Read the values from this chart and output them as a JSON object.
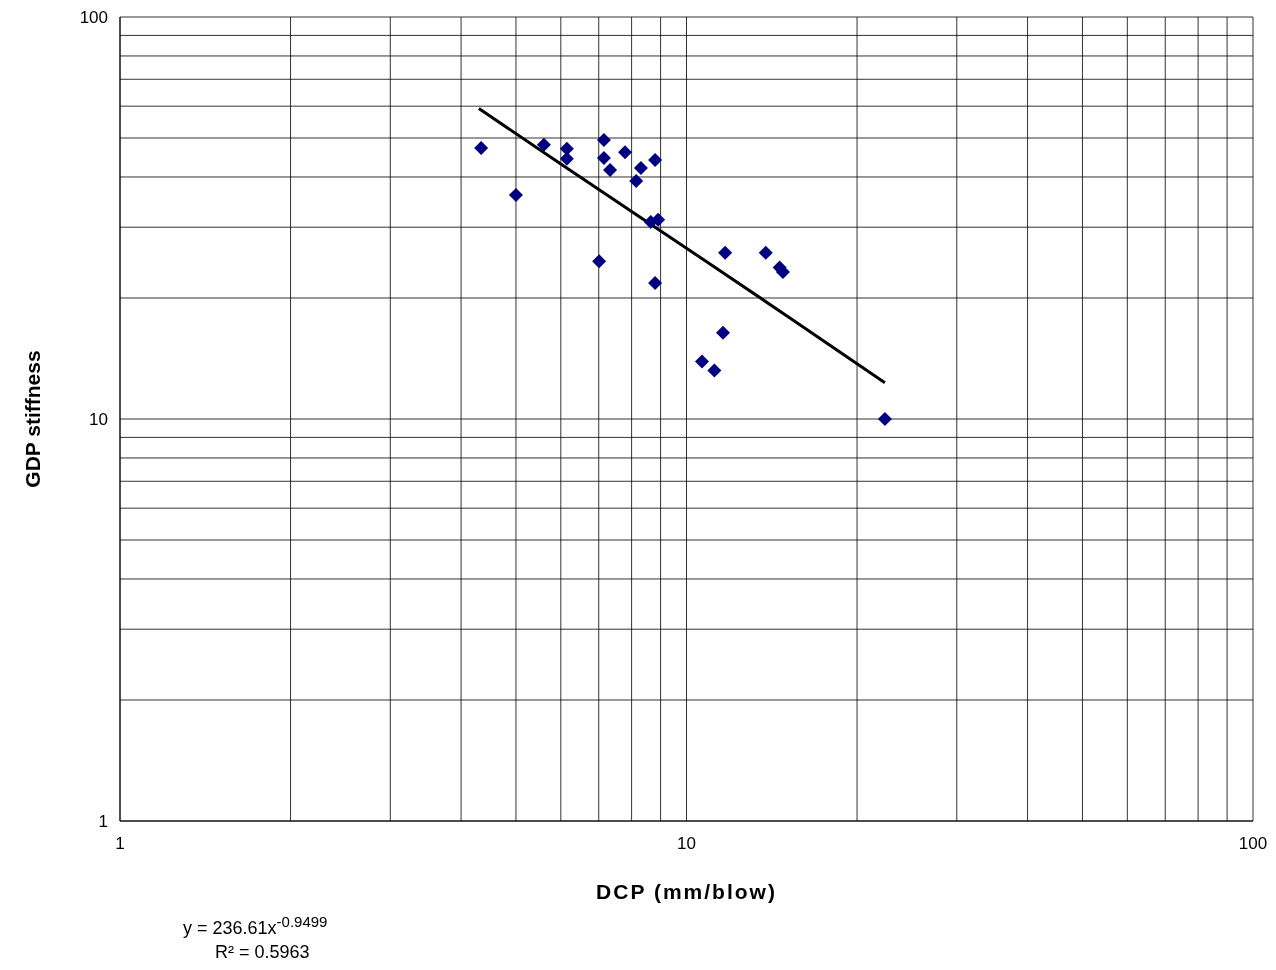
{
  "chart_data": {
    "type": "scatter",
    "xlabel": "DCP (mm/blow)",
    "ylabel": "GDP stiffness",
    "log": "xy",
    "grid": true,
    "xlim": [
      1,
      100
    ],
    "ylim": [
      1,
      100
    ],
    "xticks": [
      1,
      {
        "value": 2,
        "label": null
      },
      {
        "value": 3,
        "label": null
      },
      {
        "value": 4,
        "label": null
      },
      {
        "value": 5,
        "label": null
      },
      {
        "value": 6,
        "label": null
      },
      {
        "value": 7,
        "label": null
      },
      {
        "value": 8,
        "label": null
      },
      {
        "value": 9,
        "label": null
      },
      10,
      {
        "value": 20,
        "label": null
      },
      {
        "value": 30,
        "label": null
      },
      {
        "value": 40,
        "label": null
      },
      {
        "value": 50,
        "label": null
      },
      {
        "value": 60,
        "label": null
      },
      {
        "value": 70,
        "label": null
      },
      {
        "value": 80,
        "label": null
      },
      {
        "value": 90,
        "label": null
      },
      100
    ],
    "yticks": [
      1,
      {
        "value": 2,
        "label": null
      },
      {
        "value": 3,
        "label": null
      },
      {
        "value": 4,
        "label": null
      },
      {
        "value": 5,
        "label": null
      },
      {
        "value": 6,
        "label": null
      },
      {
        "value": 7,
        "label": null
      },
      {
        "value": 8,
        "label": null
      },
      {
        "value": 9,
        "label": null
      },
      10,
      {
        "value": 20,
        "label": null
      },
      {
        "value": 30,
        "label": null
      },
      {
        "value": 40,
        "label": null
      },
      {
        "value": 50,
        "label": null
      },
      {
        "value": 60,
        "label": null
      },
      {
        "value": 70,
        "label": null
      },
      {
        "value": 80,
        "label": null
      },
      {
        "value": 90,
        "label": null
      },
      100
    ],
    "series": [
      {
        "marker": "diamond",
        "color": "#000080",
        "x": [
          4.34,
          5.0,
          5.6,
          6.15,
          6.15,
          7.15,
          7.15,
          7.33,
          7.79,
          8.31,
          8.15,
          8.8,
          8.65,
          8.91,
          7.01,
          8.8,
          11.7,
          13.8,
          14.6,
          14.8,
          11.6,
          10.65,
          11.2,
          22.4
        ],
        "values": [
          47.2,
          36.1,
          48.1,
          47.0,
          44.4,
          49.4,
          44.6,
          41.6,
          46.1,
          42.1,
          39.1,
          44.1,
          30.9,
          31.3,
          24.7,
          21.8,
          25.9,
          25.9,
          23.8,
          23.2,
          16.4,
          13.9,
          13.2,
          10.0
        ]
      },
      {
        "type": "line",
        "marker": "none",
        "line_style": "solid",
        "color": "#000000",
        "x": [
          4.3,
          6,
          8,
          10,
          15,
          22.4
        ],
        "values": [
          59.2,
          43.1,
          32.8,
          26.6,
          18.1,
          12.3
        ]
      }
    ],
    "annotations": [
      "y = 236.61x$^{-0.9499}$",
      "R² = 0.5963"
    ]
  }
}
